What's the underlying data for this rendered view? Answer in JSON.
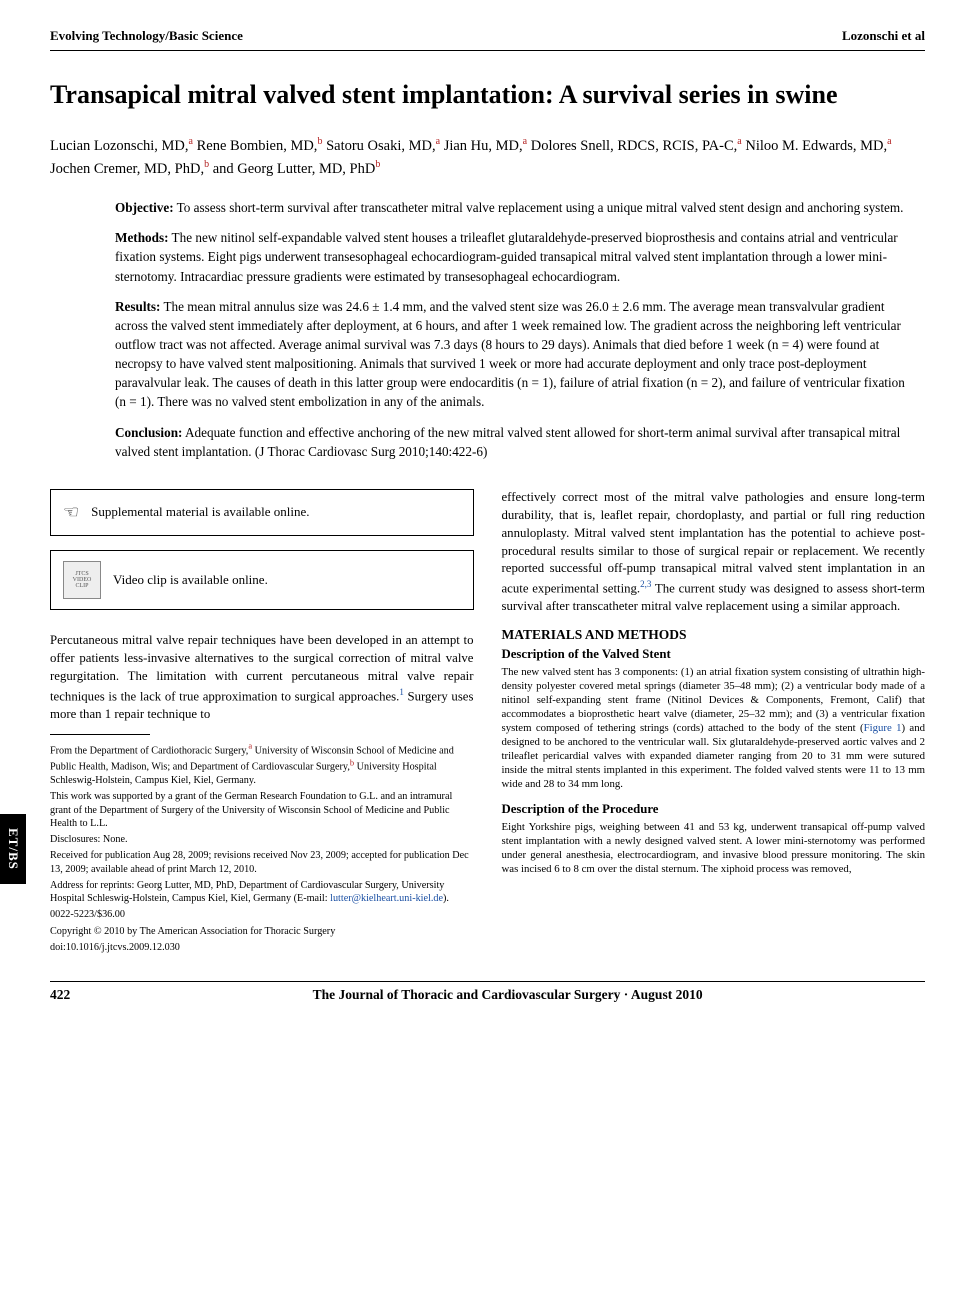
{
  "header": {
    "section": "Evolving Technology/Basic Science",
    "running_author": "Lozonschi et al"
  },
  "title": "Transapical mitral valved stent implantation: A survival series in swine",
  "authors_html": "Lucian Lozonschi, MD,<sup>a</sup> Rene Bombien, MD,<sup>b</sup> Satoru Osaki, MD,<sup>a</sup> Jian Hu, MD,<sup>a</sup> Dolores Snell, RDCS, RCIS, PA-C,<sup>a</sup> Niloo M. Edwards, MD,<sup>a</sup> Jochen Cremer, MD, PhD,<sup>b</sup> and Georg Lutter, MD, PhD<sup>b</sup>",
  "abstract": {
    "objective": {
      "label": "Objective:",
      "text": "To assess short-term survival after transcatheter mitral valve replacement using a unique mitral valved stent design and anchoring system."
    },
    "methods": {
      "label": "Methods:",
      "text": "The new nitinol self-expandable valved stent houses a trileaflet glutaraldehyde-preserved bioprosthesis and contains atrial and ventricular fixation systems. Eight pigs underwent transesophageal echocardiogram-guided transapical mitral valved stent implantation through a lower mini-sternotomy. Intracardiac pressure gradients were estimated by transesophageal echocardiogram."
    },
    "results": {
      "label": "Results:",
      "text": "The mean mitral annulus size was 24.6 ± 1.4 mm, and the valved stent size was 26.0 ± 2.6 mm. The average mean transvalvular gradient across the valved stent immediately after deployment, at 6 hours, and after 1 week remained low. The gradient across the neighboring left ventricular outflow tract was not affected. Average animal survival was 7.3 days (8 hours to 29 days). Animals that died before 1 week (n = 4) were found at necropsy to have valved stent malpositioning. Animals that survived 1 week or more had accurate deployment and only trace post-deployment paravalvular leak. The causes of death in this latter group were endocarditis (n = 1), failure of atrial fixation (n = 2), and failure of ventricular fixation (n = 1). There was no valved stent embolization in any of the animals."
    },
    "conclusion": {
      "label": "Conclusion:",
      "text": "Adequate function and effective anchoring of the new mitral valved stent allowed for short-term animal survival after transapical mitral valved stent implantation. (J Thorac Cardiovasc Surg 2010;140:422-6)"
    }
  },
  "supp_box_1": "Supplemental material is available online.",
  "supp_box_2": "Video clip is available online.",
  "video_icon_lines": [
    "JTCS",
    "VIDEO",
    "CLIP"
  ],
  "side_tab": "ET/BS",
  "col_left_body": "Percutaneous mitral valve repair techniques have been developed in an attempt to offer patients less-invasive alternatives to the surgical correction of mitral valve regurgitation. The limitation with current percutaneous mitral valve repair techniques is the lack of true approximation to surgical approaches.<sup>1</sup> Surgery uses more than 1 repair technique to",
  "col_right_intro": "effectively correct most of the mitral valve pathologies and ensure long-term durability, that is, leaflet repair, chordoplasty, and partial or full ring reduction annuloplasty. Mitral valved stent implantation has the potential to achieve post-procedural results similar to those of surgical repair or replacement. We recently reported successful off-pump transapical mitral valved stent implantation in an acute experimental setting.<sup>2,3</sup> The current study was designed to assess short-term survival after transcatheter mitral valve replacement using a similar approach.",
  "materials_heading": "MATERIALS AND METHODS",
  "desc_stent_heading": "Description of the Valved Stent",
  "desc_stent_body": "The new valved stent has 3 components: (1) an atrial fixation system consisting of ultrathin high-density polyester covered metal springs (diameter 35–48 mm); (2) a ventricular body made of a nitinol self-expanding stent frame (Nitinol Devices & Components, Fremont, Calif) that accommodates a bioprosthetic heart valve (diameter, 25–32 mm); and (3) a ventricular fixation system composed of tethering strings (cords) attached to the body of the stent (<span class=\"fig-link\">Figure 1</span>) and designed to be anchored to the ventricular wall. Six glutaraldehyde-preserved aortic valves and 2 trileaflet pericardial valves with expanded diameter ranging from 20 to 31 mm were sutured inside the mitral stents implanted in this experiment. The folded valved stents were 11 to 13 mm wide and 28 to 34 mm long.",
  "desc_proc_heading": "Description of the Procedure",
  "desc_proc_body": "Eight Yorkshire pigs, weighing between 41 and 53 kg, underwent transapical off-pump valved stent implantation with a newly designed valved stent. A lower mini-sternotomy was performed under general anesthesia, electrocardiogram, and invasive blood pressure monitoring. The skin was incised 6 to 8 cm over the distal sternum. The xiphoid process was removed,",
  "footnotes": {
    "from": "From the Department of Cardiothoracic Surgery,<span class=\"sup\"><sup>a</sup></span> University of Wisconsin School of Medicine and Public Health, Madison, Wis; and Department of Cardiovascular Surgery,<span class=\"sup\"><sup>b</sup></span> University Hospital Schleswig-Holstein, Campus Kiel, Kiel, Germany.",
    "support": "This work was supported by a grant of the German Research Foundation to G.L. and an intramural grant of the Department of Surgery of the University of Wisconsin School of Medicine and Public Health to L.L.",
    "disclosures": "Disclosures: None.",
    "received": "Received for publication Aug 28, 2009; revisions received Nov 23, 2009; accepted for publication Dec 13, 2009; available ahead of print March 12, 2010.",
    "reprints_pre": "Address for reprints: Georg Lutter, MD, PhD, Department of Cardiovascular Surgery, University Hospital Schleswig-Holstein, Campus Kiel, Kiel, Germany (E-mail: ",
    "reprints_email": "lutter@kielheart.uni-kiel.de",
    "reprints_post": ").",
    "issn": "0022-5223/$36.00",
    "copyright": "Copyright © 2010 by The American Association for Thoracic Surgery",
    "doi": "doi:10.1016/j.jtcvs.2009.12.030"
  },
  "footer": {
    "page": "422",
    "journal": "The Journal of Thoracic and Cardiovascular Surgery · August 2010"
  }
}
